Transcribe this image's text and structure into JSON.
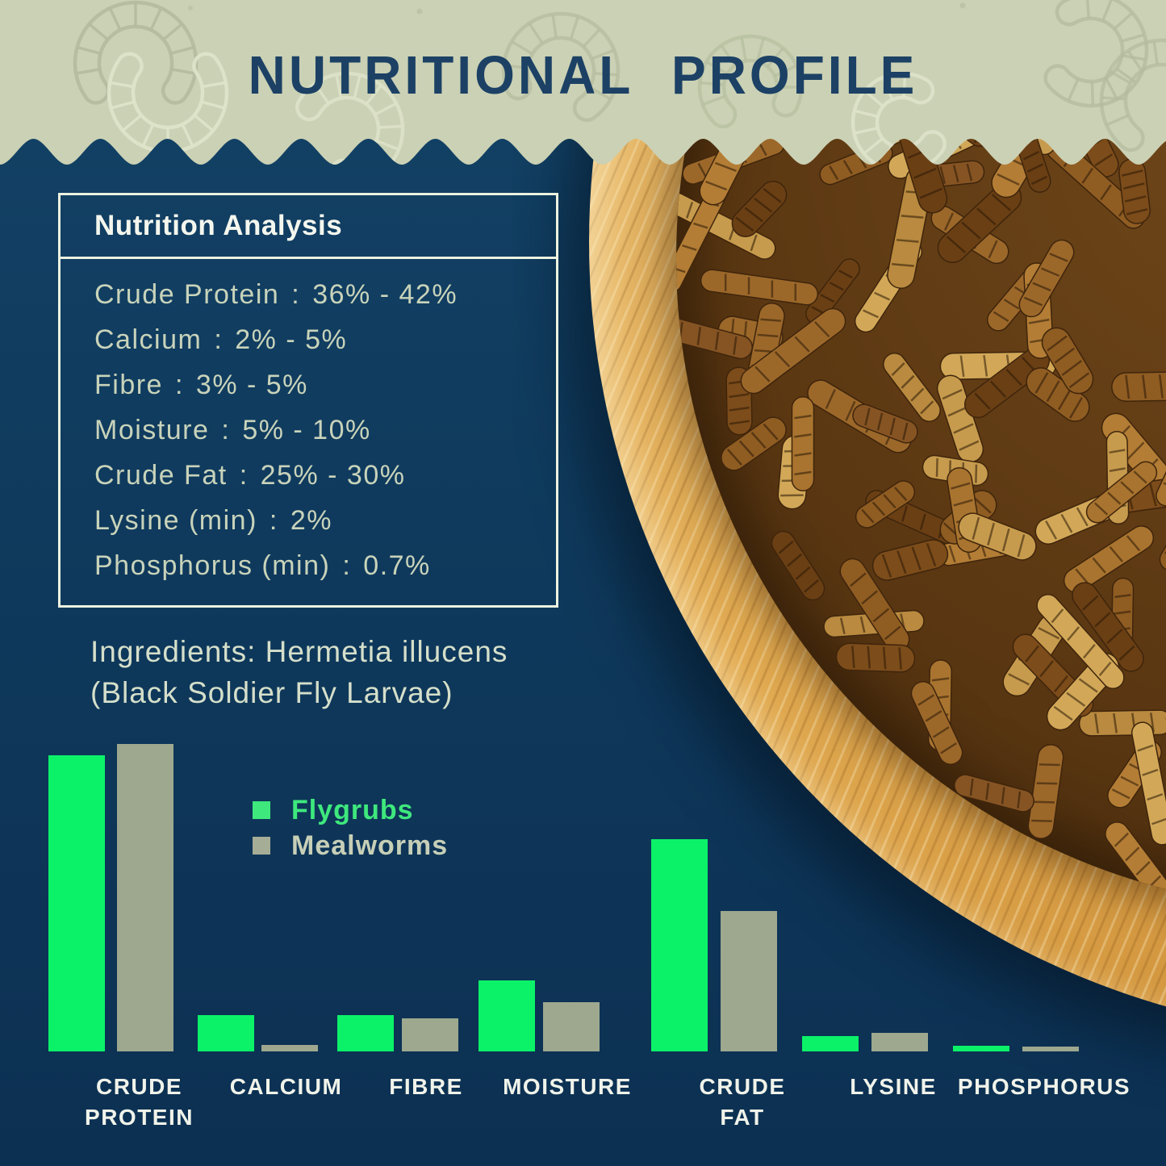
{
  "header": {
    "title": "NUTRITIONAL PROFILE"
  },
  "analysis_box": {
    "title": "Nutrition Analysis",
    "separator": ":",
    "rows": [
      {
        "label": "Crude Protein",
        "value": "36% - 42%"
      },
      {
        "label": "Calcium",
        "value": "2% - 5%"
      },
      {
        "label": "Fibre",
        "value": "3% - 5%"
      },
      {
        "label": "Moisture",
        "value": "5% - 10%"
      },
      {
        "label": "Crude Fat",
        "value": "25% - 30%"
      },
      {
        "label": "Lysine (min)",
        "value": "2%"
      },
      {
        "label": "Phosphorus (min)",
        "value": "0.7%"
      }
    ]
  },
  "ingredients": {
    "line1": "Ingredients: Hermetia illucens",
    "line2": "(Black Soldier Fly Larvae)"
  },
  "photo": {
    "alt": "Dried black soldier fly larvae piled in a round wooden bowl"
  },
  "chart_data": {
    "type": "bar",
    "title": "",
    "xlabel": "",
    "ylabel": "",
    "unit": "percent",
    "axes_hidden": true,
    "grid": false,
    "legend_position": "inside-upper-left",
    "ylim": [
      0,
      42
    ],
    "categories": [
      "CRUDE PROTEIN",
      "CALCIUM",
      "FIBRE",
      "MOISTURE",
      "CRUDE FAT",
      "LYSINE",
      "PHOSPHORUS"
    ],
    "series": [
      {
        "name": "Flygrubs",
        "color": "#0bf269",
        "values": [
          39,
          4.8,
          4.8,
          9.4,
          28,
          2,
          0.7
        ]
      },
      {
        "name": "Mealworms",
        "color": "#9da88f",
        "values": [
          40.5,
          0.9,
          4.4,
          6.5,
          18.5,
          2.4,
          0.6
        ]
      }
    ],
    "colors": {
      "background_navy": "#0f3a5d",
      "header_sage": "#cbd1b4",
      "title_navy": "#1c4165",
      "box_border": "#ecf2e0",
      "row_text": "#c8d3ba",
      "label_text": "#f0f3ea",
      "legend_green_text": "#3ee87d",
      "legend_gray_text": "#c7cfb7"
    }
  }
}
